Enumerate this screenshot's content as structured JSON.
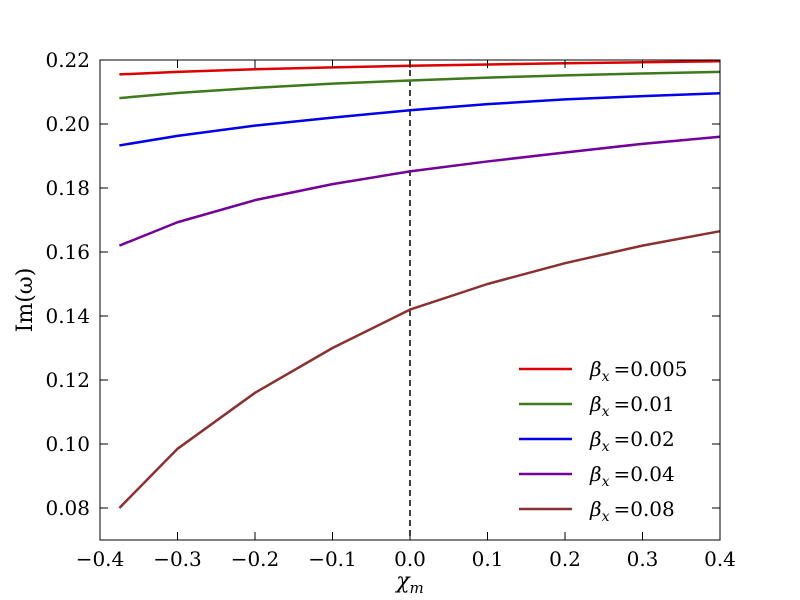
{
  "chart_data": {
    "type": "line",
    "xlabel": "χ",
    "xlabel_sub": "m",
    "ylabel": "Im(ω)",
    "xlim": [
      -0.4,
      0.4
    ],
    "ylim": [
      0.07,
      0.22
    ],
    "xticks": [
      "−0.4",
      "−0.3",
      "−0.2",
      "−0.1",
      "0.0",
      "0.1",
      "0.2",
      "0.3",
      "0.4"
    ],
    "yticks": [
      "0.08",
      "0.10",
      "0.12",
      "0.14",
      "0.16",
      "0.18",
      "0.20",
      "0.22"
    ],
    "vline": {
      "x": 0.0,
      "style": "dashed",
      "color": "#000000"
    },
    "legend_position": "bottom-right",
    "grid": false,
    "series": [
      {
        "name": "β_x = 0.005",
        "legend_symbol": "β",
        "legend_sub": "x",
        "legend_value": "=0.005",
        "color": "#dd0000",
        "x": [
          -0.375,
          -0.3,
          -0.2,
          -0.1,
          0.0,
          0.1,
          0.2,
          0.3,
          0.4
        ],
        "y": [
          0.2155,
          0.2163,
          0.2171,
          0.2177,
          0.2182,
          0.2186,
          0.219,
          0.2193,
          0.2196
        ]
      },
      {
        "name": "β_x = 0.01",
        "legend_symbol": "β",
        "legend_sub": "x",
        "legend_value": "=0.01",
        "color": "#3d7a1c",
        "x": [
          -0.375,
          -0.3,
          -0.2,
          -0.1,
          0.0,
          0.1,
          0.2,
          0.3,
          0.4
        ],
        "y": [
          0.2081,
          0.2097,
          0.2113,
          0.2126,
          0.2136,
          0.2145,
          0.2152,
          0.2158,
          0.2163
        ]
      },
      {
        "name": "β_x = 0.02",
        "legend_symbol": "β",
        "legend_sub": "x",
        "legend_value": "=0.02",
        "color": "#0000ee",
        "x": [
          -0.375,
          -0.3,
          -0.2,
          -0.1,
          0.0,
          0.1,
          0.2,
          0.3,
          0.4
        ],
        "y": [
          0.1933,
          0.1963,
          0.1995,
          0.202,
          0.2043,
          0.2062,
          0.2077,
          0.2087,
          0.2096
        ]
      },
      {
        "name": "β_x = 0.04",
        "legend_symbol": "β",
        "legend_sub": "x",
        "legend_value": "=0.04",
        "color": "#73009a",
        "x": [
          -0.375,
          -0.3,
          -0.2,
          -0.1,
          0.0,
          0.1,
          0.2,
          0.3,
          0.4
        ],
        "y": [
          0.162,
          0.1693,
          0.1762,
          0.1812,
          0.1852,
          0.1883,
          0.1911,
          0.1938,
          0.196
        ]
      },
      {
        "name": "β_x = 0.08",
        "legend_symbol": "β",
        "legend_sub": "x",
        "legend_value": "=0.08",
        "color": "#8b3030",
        "x": [
          -0.375,
          -0.3,
          -0.2,
          -0.1,
          0.0,
          0.1,
          0.2,
          0.3,
          0.4
        ],
        "y": [
          0.08,
          0.0985,
          0.116,
          0.13,
          0.142,
          0.15,
          0.1565,
          0.162,
          0.1665
        ]
      }
    ]
  }
}
